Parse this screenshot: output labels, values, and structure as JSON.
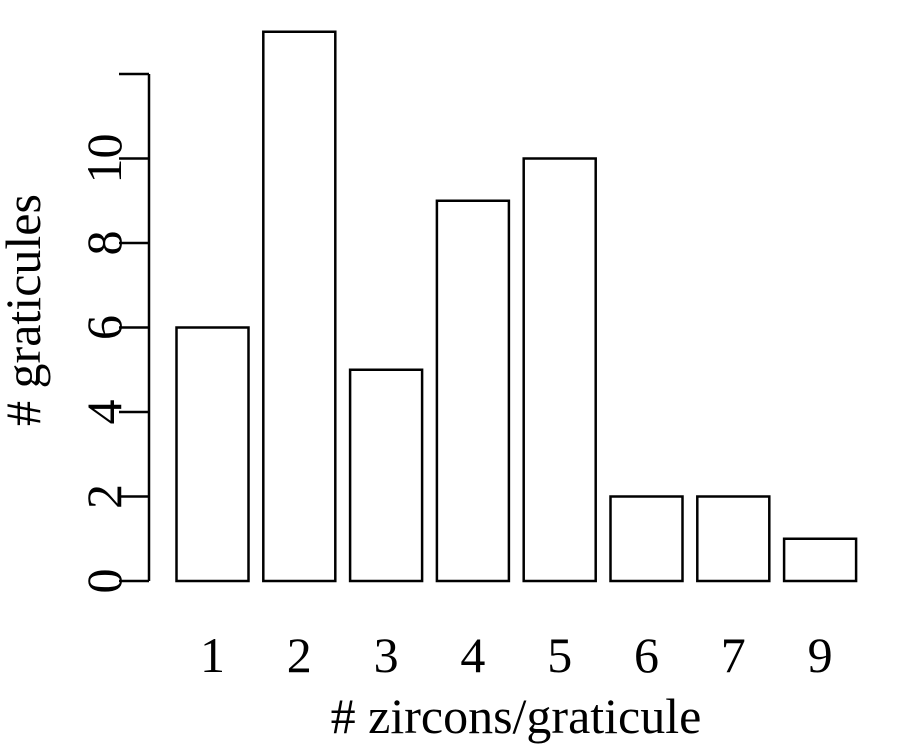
{
  "chart_data": {
    "type": "bar",
    "categories": [
      "1",
      "2",
      "3",
      "4",
      "5",
      "6",
      "7",
      "9"
    ],
    "values": [
      6,
      13,
      5,
      9,
      10,
      2,
      2,
      1
    ],
    "xlabel": "# zircons/graticule",
    "ylabel": "# graticules",
    "ylim": [
      0,
      12
    ],
    "yticks": [
      0,
      2,
      4,
      6,
      8,
      10,
      12
    ],
    "ytick_labels": [
      "0",
      "2",
      "4",
      "6",
      "8",
      "10",
      ""
    ],
    "grid": false,
    "bar_fill": "#ffffff",
    "bar_stroke": "#000000"
  }
}
